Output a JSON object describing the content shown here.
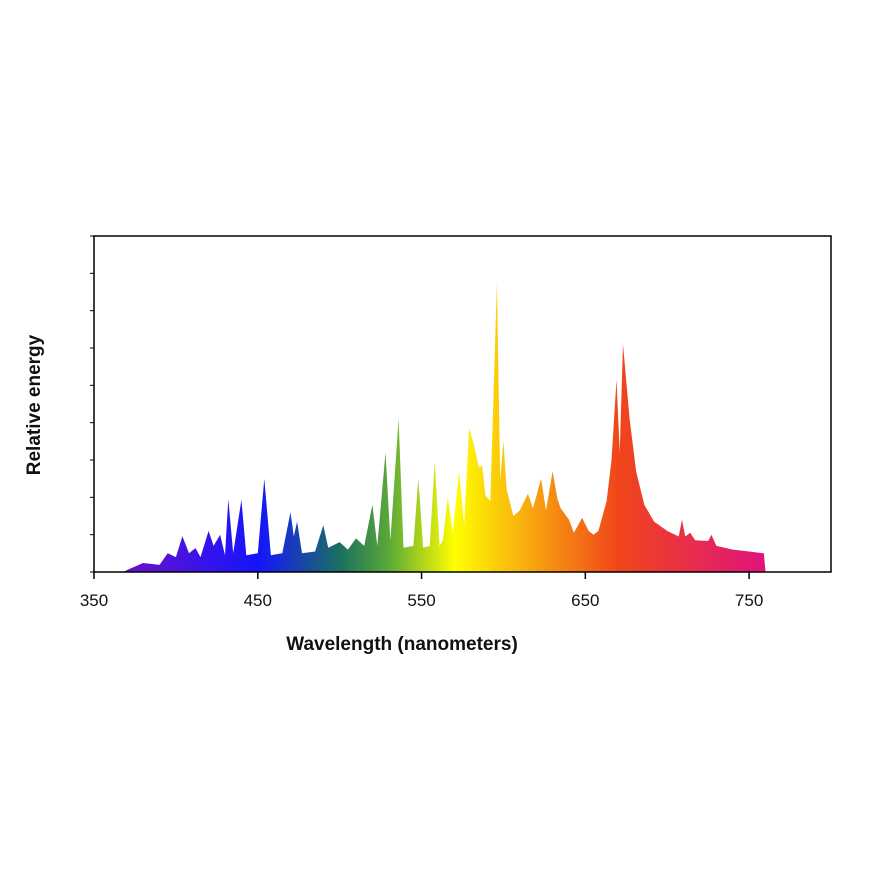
{
  "chart_data": {
    "type": "area",
    "title": "",
    "xlabel": "Wavelength (nanometers)",
    "ylabel": "Relative energy",
    "xlim": [
      350,
      800
    ],
    "ylim": [
      0,
      9
    ],
    "x_ticks": [
      350,
      450,
      550,
      650,
      750
    ],
    "y_ticks_labeled": false,
    "grid": false,
    "fill": "spectral gradient by wavelength",
    "gradient_colors": [
      {
        "nm": 370,
        "color": "#6a12c8"
      },
      {
        "nm": 450,
        "color": "#1414ff"
      },
      {
        "nm": 500,
        "color": "#1a7060"
      },
      {
        "nm": 530,
        "color": "#5aa838"
      },
      {
        "nm": 570,
        "color": "#ffff00"
      },
      {
        "nm": 620,
        "color": "#f7a010"
      },
      {
        "nm": 670,
        "color": "#f0461a"
      },
      {
        "nm": 760,
        "color": "#e0137e"
      }
    ],
    "x": [
      368,
      370,
      380,
      390,
      395,
      400,
      404,
      408,
      412,
      415,
      420,
      423,
      427,
      430,
      432,
      435,
      440,
      443,
      450,
      454,
      458,
      465,
      470,
      472,
      474,
      477,
      485,
      490,
      493,
      500,
      505,
      510,
      515,
      520,
      523,
      528,
      531,
      536,
      539,
      545,
      548,
      551,
      555,
      558,
      561,
      563,
      566,
      569,
      573,
      576,
      579,
      582,
      585,
      587,
      589,
      592,
      596,
      598,
      600,
      602,
      606,
      610,
      615,
      618,
      623,
      626,
      630,
      633,
      635,
      640,
      643,
      648,
      652,
      655,
      658,
      663,
      666,
      669,
      671,
      673,
      677,
      681,
      686,
      692,
      700,
      707,
      709,
      711,
      714,
      717,
      725,
      727,
      730,
      740,
      750,
      759,
      760
    ],
    "values": [
      0,
      0.05,
      0.24,
      0.19,
      0.5,
      0.4,
      0.96,
      0.5,
      0.64,
      0.4,
      1.1,
      0.7,
      1.0,
      0.45,
      1.95,
      0.5,
      1.93,
      0.45,
      0.5,
      2.5,
      0.45,
      0.5,
      1.6,
      0.95,
      1.35,
      0.5,
      0.55,
      1.25,
      0.65,
      0.8,
      0.6,
      0.9,
      0.7,
      1.8,
      0.7,
      3.2,
      0.85,
      4.1,
      0.65,
      0.7,
      2.5,
      0.65,
      0.7,
      2.95,
      0.7,
      0.85,
      2.0,
      1.05,
      2.7,
      1.25,
      3.85,
      3.4,
      2.8,
      2.85,
      2.05,
      1.9,
      7.75,
      2.45,
      3.5,
      2.2,
      1.5,
      1.65,
      2.1,
      1.7,
      2.5,
      1.65,
      2.7,
      1.95,
      1.7,
      1.4,
      1.05,
      1.45,
      1.1,
      1.0,
      1.1,
      1.9,
      3.0,
      5.15,
      3.2,
      6.1,
      4.1,
      2.7,
      1.8,
      1.35,
      1.1,
      0.95,
      1.4,
      0.95,
      1.05,
      0.85,
      0.83,
      1.0,
      0.7,
      0.6,
      0.55,
      0.5,
      0
    ]
  }
}
